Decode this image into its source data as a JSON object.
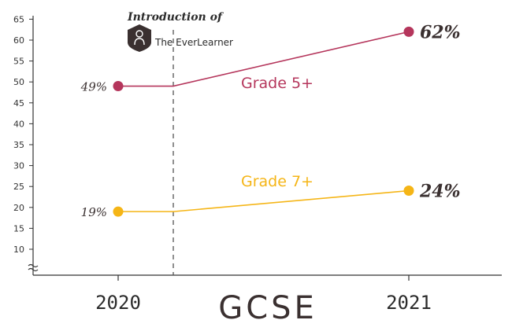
{
  "branding": {
    "intro_text": "Introduction of",
    "brand_name": "The EverLearner",
    "logo_icon": "person-badge-icon"
  },
  "colors": {
    "grade5": "#b5365c",
    "grade7": "#f5b516",
    "axis": "#333333",
    "divider": "#555555"
  },
  "chart_data": {
    "type": "line",
    "title": "",
    "xlabel": "GCSE",
    "ylabel": "",
    "categories": [
      "2020",
      "2021"
    ],
    "ylim": [
      5,
      65
    ],
    "y_ticks": [
      10,
      15,
      20,
      25,
      30,
      35,
      40,
      45,
      50,
      55,
      60,
      65
    ],
    "y_axis_break": true,
    "grid": false,
    "divider": "dashed vertical line between 2020 and 2021",
    "series": [
      {
        "name": "Grade 5+",
        "values": [
          49,
          62
        ],
        "value_labels": [
          "49%",
          "62%"
        ],
        "color": "#b5365c"
      },
      {
        "name": "Grade 7+",
        "values": [
          19,
          24
        ],
        "value_labels": [
          "19%",
          "24%"
        ],
        "color": "#f5b516"
      }
    ]
  }
}
